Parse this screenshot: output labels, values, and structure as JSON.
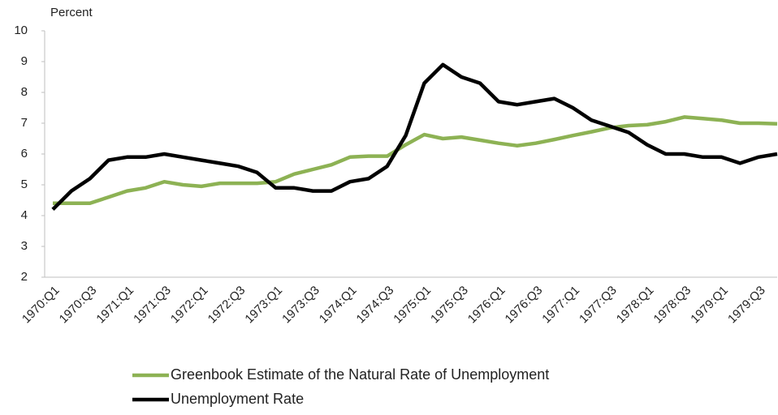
{
  "chart_data": {
    "type": "line",
    "y_label": "Percent",
    "categories": [
      "1970:Q1",
      null,
      "1970:Q3",
      null,
      "1971:Q1",
      null,
      "1971:Q3",
      null,
      "1972:Q1",
      null,
      "1972:Q3",
      null,
      "1973:Q1",
      null,
      "1973:Q3",
      null,
      "1974:Q1",
      null,
      "1974:Q3",
      null,
      "1975:Q1",
      null,
      "1975:Q3",
      null,
      "1976:Q1",
      null,
      "1976:Q3",
      null,
      "1977:Q1",
      null,
      "1977:Q3",
      null,
      "1978:Q1",
      null,
      "1978:Q3",
      null,
      "1979:Q1",
      null,
      "1979:Q3",
      null
    ],
    "series": [
      {
        "name": "Greenbook Estimate of the Natural Rate of Unemployment",
        "color": "#8db254",
        "values": [
          4.4,
          4.4,
          4.4,
          4.6,
          4.8,
          4.9,
          5.1,
          5.0,
          4.95,
          5.05,
          5.05,
          5.05,
          5.1,
          5.35,
          5.5,
          5.65,
          5.9,
          5.93,
          5.93,
          6.3,
          6.63,
          6.5,
          6.55,
          6.45,
          6.35,
          6.27,
          6.35,
          6.47,
          6.6,
          6.72,
          6.85,
          6.92,
          6.95,
          7.05,
          7.2,
          7.15,
          7.1,
          7.0,
          7.0,
          6.98
        ]
      },
      {
        "name": "Unemployment Rate",
        "color": "#000000",
        "values": [
          4.2,
          4.8,
          5.2,
          5.8,
          5.9,
          5.9,
          6.0,
          5.9,
          5.8,
          5.7,
          5.6,
          5.4,
          4.9,
          4.9,
          4.8,
          4.8,
          5.1,
          5.2,
          5.6,
          6.6,
          8.3,
          8.9,
          8.5,
          8.3,
          7.7,
          7.6,
          7.7,
          7.8,
          7.5,
          7.1,
          6.9,
          6.7,
          6.3,
          6.0,
          6.0,
          5.9,
          5.9,
          5.7,
          5.9,
          6.0
        ]
      }
    ],
    "ylim": [
      2,
      10
    ],
    "yticks": [
      2,
      3,
      4,
      5,
      6,
      7,
      8,
      9,
      10
    ],
    "grid": false
  }
}
